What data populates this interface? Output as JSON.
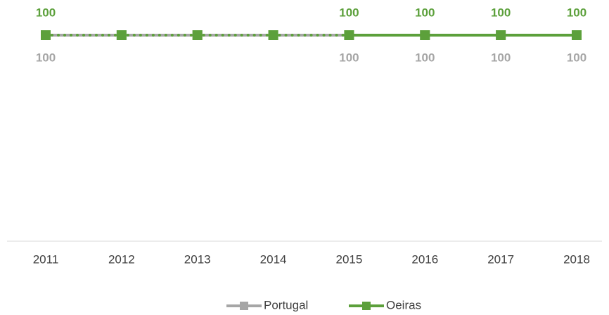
{
  "chart_data": {
    "type": "line",
    "categories": [
      "2011",
      "2012",
      "2013",
      "2014",
      "2015",
      "2016",
      "2017",
      "2018"
    ],
    "ylim": [
      0,
      100
    ],
    "series": [
      {
        "name": "Portugal",
        "color": "#a6a6a6",
        "values": [
          100,
          100,
          100,
          100,
          100,
          100,
          100,
          100
        ],
        "value_labels": [
          "100",
          null,
          null,
          null,
          "100",
          "100",
          "100",
          "100"
        ],
        "label_position": "below",
        "segment_styles": [
          "solid",
          "solid",
          "solid",
          "solid",
          "solid",
          "solid",
          "solid"
        ]
      },
      {
        "name": "Oeiras",
        "color": "#5ca03b",
        "values": [
          100,
          100,
          100,
          100,
          100,
          100,
          100,
          100
        ],
        "value_labels": [
          "100",
          null,
          null,
          null,
          "100",
          "100",
          "100",
          "100"
        ],
        "label_position": "above",
        "segment_styles": [
          "dotted",
          "dotted",
          "dotted",
          "dotted",
          "solid",
          "solid",
          "solid"
        ]
      }
    ]
  }
}
